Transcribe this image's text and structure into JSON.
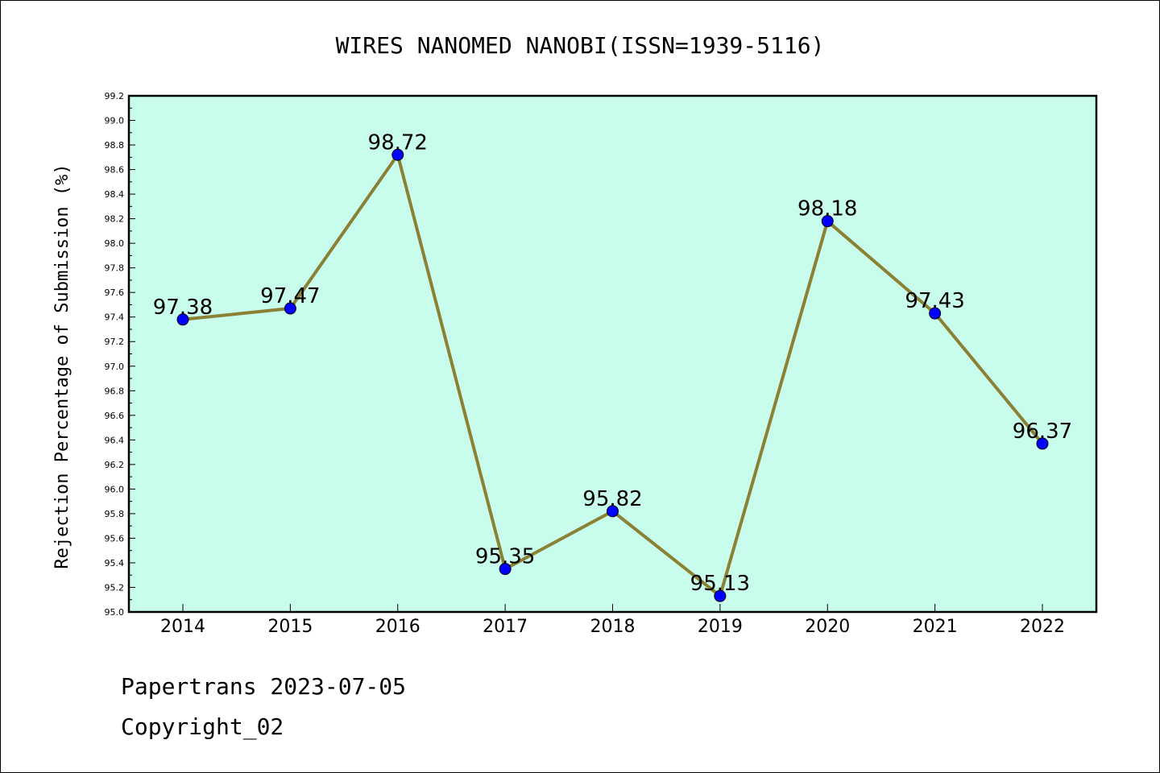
{
  "chart_data": {
    "type": "line",
    "title": "WIRES NANOMED NANOBI(ISSN=1939-5116)",
    "ylabel": "Rejection Percentage of Submission (%)",
    "xlabel": "",
    "categories": [
      "2014",
      "2015",
      "2016",
      "2017",
      "2018",
      "2019",
      "2020",
      "2021",
      "2022"
    ],
    "values": [
      97.38,
      97.47,
      98.72,
      95.35,
      95.82,
      95.13,
      98.18,
      97.43,
      96.37
    ],
    "value_labels": [
      "97.38",
      "97.47",
      "98.72",
      "95.35",
      "95.82",
      "95.13",
      "98.18",
      "97.43",
      "96.37"
    ],
    "ylim": [
      95.0,
      99.2
    ],
    "ytick_labels": [
      "95.0",
      "95.2",
      "95.4",
      "95.6",
      "95.8",
      "96.0",
      "96.2",
      "96.4",
      "96.6",
      "96.8",
      "97.0",
      "97.2",
      "97.4",
      "97.6",
      "97.8",
      "98.0",
      "98.2",
      "98.4",
      "98.6",
      "98.8",
      "99.0",
      "99.2"
    ],
    "grid": false,
    "colors": {
      "plot_background": "#c8fcec",
      "line": "#8b8135",
      "marker": "#0000ff"
    }
  },
  "footer": {
    "line1": "Papertrans 2023-07-05",
    "line2": "Copyright_02"
  }
}
